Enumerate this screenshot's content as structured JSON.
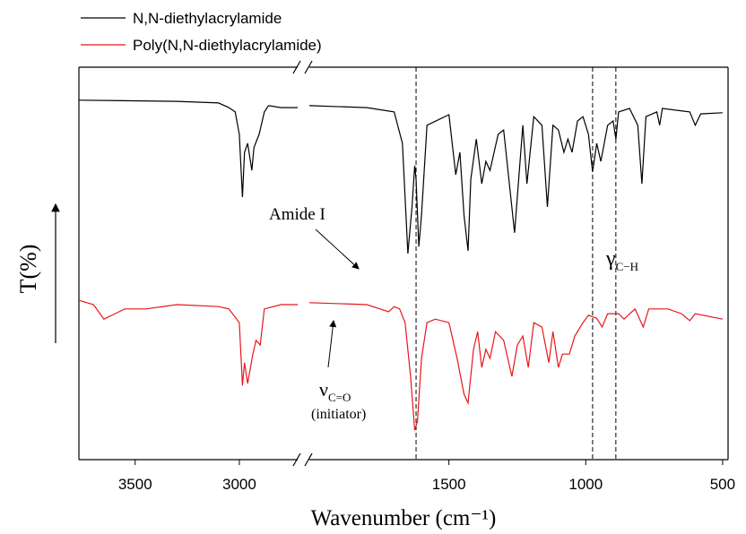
{
  "chart_data": {
    "type": "line",
    "x_label": "Wavenumber (cm⁻¹)",
    "y_label": "T(%)",
    "x_segments": [
      {
        "xlim": [
          3770,
          2720
        ],
        "xticks": [
          3500,
          3000
        ]
      },
      {
        "xlim": [
          2010,
          480
        ],
        "xticks": [
          1500,
          1000,
          500
        ]
      }
    ],
    "ylim": [
      0,
      100
    ],
    "reference_lines": [
      1620,
      975,
      890
    ],
    "annotations": {
      "amide": "Amide I",
      "nu": "ν",
      "nu_sub": "C=O",
      "initiator": "(initiator)",
      "gamma": "γ",
      "gamma_sub": "C−H"
    },
    "series": [
      {
        "name": "N,N-diethylacrylamide",
        "color": "#000000",
        "x": [
          3770,
          3300,
          3100,
          3050,
          3020,
          3000,
          2985,
          2975,
          2960,
          2940,
          2930,
          2905,
          2880,
          2860,
          2800,
          2720,
          2400,
          2010,
          1800,
          1700,
          1670,
          1650,
          1635,
          1625,
          1620,
          1610,
          1600,
          1580,
          1500,
          1475,
          1460,
          1445,
          1430,
          1420,
          1400,
          1380,
          1365,
          1350,
          1320,
          1300,
          1260,
          1230,
          1215,
          1190,
          1160,
          1140,
          1120,
          1100,
          1080,
          1065,
          1050,
          1030,
          1010,
          990,
          975,
          960,
          945,
          920,
          900,
          890,
          880,
          840,
          810,
          795,
          780,
          740,
          730,
          720,
          620,
          600,
          580,
          500
        ],
        "values": [
          91.6,
          91.3,
          90.9,
          89.7,
          88.6,
          82.9,
          66.9,
          78.3,
          80.6,
          73.7,
          79.5,
          82.9,
          88.6,
          90.2,
          89.7,
          89.7,
          null,
          90.2,
          89.7,
          88.6,
          80.6,
          52.5,
          64.4,
          74.9,
          71.5,
          54.3,
          62.3,
          85.2,
          87.9,
          72.6,
          78.3,
          62.3,
          53.2,
          71.5,
          81.7,
          70.3,
          76.0,
          73.7,
          82.9,
          84.0,
          57.8,
          85.2,
          70.3,
          87.4,
          85.2,
          64.4,
          85.2,
          84.0,
          78.3,
          81.7,
          78.3,
          86.3,
          87.4,
          82.9,
          73.3,
          80.6,
          76.0,
          85.2,
          86.3,
          81.7,
          88.6,
          89.5,
          85.2,
          70.3,
          87.4,
          88.6,
          85.2,
          89.5,
          88.6,
          85.2,
          88.1,
          88.4
        ]
      },
      {
        "name": "Poly(N,N-diethylacrylamide)",
        "color": "#e8161b",
        "x": [
          3770,
          3700,
          3650,
          3550,
          3450,
          3300,
          3100,
          3050,
          3000,
          2985,
          2975,
          2960,
          2935,
          2920,
          2900,
          2880,
          2800,
          2720,
          2400,
          2010,
          1800,
          1720,
          1700,
          1680,
          1660,
          1640,
          1625,
          1615,
          1600,
          1580,
          1550,
          1500,
          1470,
          1445,
          1430,
          1410,
          1395,
          1380,
          1365,
          1350,
          1330,
          1300,
          1270,
          1250,
          1230,
          1210,
          1190,
          1160,
          1135,
          1120,
          1100,
          1085,
          1060,
          1040,
          1010,
          990,
          960,
          940,
          920,
          880,
          860,
          820,
          790,
          770,
          700,
          650,
          620,
          600,
          500
        ],
        "values": [
          40.6,
          39.5,
          35.8,
          38.4,
          38.4,
          39.5,
          39.0,
          38.4,
          34.9,
          18.9,
          24.7,
          19.4,
          26.9,
          30.4,
          29.2,
          38.4,
          39.5,
          39.5,
          null,
          40.0,
          39.5,
          37.7,
          39.0,
          38.4,
          34.9,
          21.2,
          7.5,
          9.8,
          25.8,
          34.9,
          35.8,
          34.9,
          25.8,
          16.7,
          14.4,
          28.1,
          32.6,
          23.5,
          28.1,
          25.8,
          32.6,
          30.4,
          21.2,
          29.2,
          31.5,
          23.5,
          34.9,
          33.8,
          24.7,
          32.6,
          23.5,
          26.9,
          26.9,
          31.5,
          34.9,
          36.8,
          36.0,
          33.8,
          37.2,
          37.2,
          35.8,
          38.4,
          33.8,
          38.4,
          38.4,
          37.2,
          35.4,
          37.2,
          35.8
        ]
      }
    ]
  }
}
